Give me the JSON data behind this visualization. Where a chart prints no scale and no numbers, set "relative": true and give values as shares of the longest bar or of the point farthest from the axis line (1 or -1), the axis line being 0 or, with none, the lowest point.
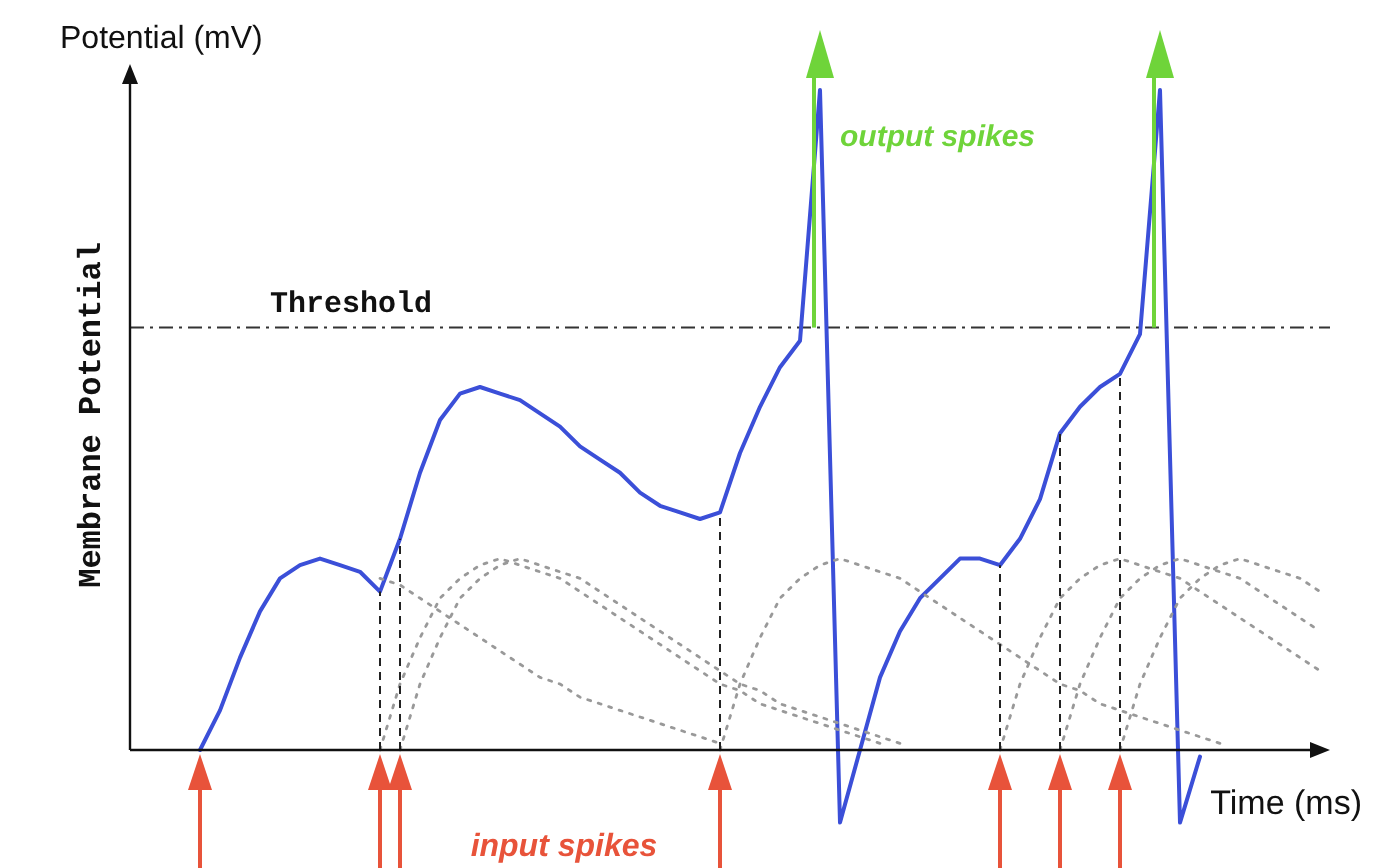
{
  "chart_data": {
    "type": "line",
    "relative": true,
    "marker": "none",
    "ylabel": "Membrane Potential",
    "xlabel": "Time (ms)",
    "annotations": [
      "Potential (mV)",
      "output spikes",
      "input spikes"
    ],
    "categories": [
      null,
      null,
      null,
      null,
      null,
      null,
      null,
      null,
      null,
      null,
      null,
      null,
      null,
      null,
      null,
      null,
      null,
      null,
      null,
      null,
      null,
      null,
      null,
      null,
      null,
      null,
      null,
      null,
      null,
      null,
      null,
      null,
      null,
      null,
      null,
      null,
      null,
      null,
      null,
      null,
      null,
      null,
      null,
      null,
      null,
      null,
      null,
      null,
      null,
      null,
      null,
      null,
      null,
      null,
      null,
      null,
      null,
      null,
      null,
      null
    ],
    "ref_lines": [
      {
        "axis": "y",
        "value": 0.64,
        "label": "Threshold",
        "line_style": "dashdot",
        "color": "#333333"
      }
    ],
    "series": [
      {
        "color": "#3b4fd8",
        "line_style": "solid",
        "values": [
          null,
          null,
          null,
          0,
          0.06,
          0.14,
          0.21,
          0.26,
          0.28,
          0.29,
          0.28,
          0.27,
          0.24,
          0.32,
          0.42,
          0.5,
          0.54,
          0.55,
          0.54,
          0.53,
          0.51,
          0.49,
          0.46,
          0.44,
          0.42,
          0.39,
          0.37,
          0.36,
          0.35,
          0.36,
          0.45,
          0.52,
          0.58,
          0.62,
          1,
          -0.11,
          0,
          0.11,
          0.18,
          0.23,
          0.26,
          0.29,
          0.29,
          0.28,
          0.32,
          0.38,
          0.48,
          0.52,
          0.55,
          0.57,
          0.63,
          1,
          -0.11,
          -0.01,
          null,
          null,
          null,
          null,
          null,
          null
        ]
      },
      {
        "color": "#999999",
        "line_style": "dotted",
        "values": [
          null,
          null,
          null,
          null,
          null,
          null,
          null,
          null,
          null,
          null,
          null,
          null,
          0.26,
          0.25,
          0.23,
          0.21,
          0.19,
          0.17,
          0.15,
          0.13,
          0.11,
          0.1,
          0.08,
          0.07,
          0.06,
          0.05,
          0.04,
          0.03,
          0.02,
          0.01,
          null,
          null,
          null,
          null,
          null,
          null,
          null,
          null,
          null,
          null,
          null,
          null,
          null,
          null,
          null,
          null,
          null,
          null,
          null,
          null,
          null,
          null,
          null,
          null,
          null,
          null,
          null,
          null,
          null,
          null
        ]
      },
      {
        "color": "#999999",
        "line_style": "dotted",
        "values": [
          null,
          null,
          null,
          null,
          null,
          null,
          null,
          null,
          null,
          null,
          null,
          null,
          0,
          0.1,
          0.17,
          0.23,
          0.26,
          0.28,
          0.29,
          0.28,
          0.27,
          0.26,
          0.24,
          0.22,
          0.2,
          0.18,
          0.16,
          0.14,
          0.12,
          0.1,
          0.09,
          0.07,
          0.06,
          0.05,
          0.04,
          0.03,
          0.02,
          0.01,
          null,
          null,
          null,
          null,
          null,
          null,
          null,
          null,
          null,
          null,
          null,
          null,
          null,
          null,
          null,
          null,
          null,
          null,
          null,
          null,
          null,
          null
        ]
      },
      {
        "color": "#999999",
        "line_style": "dotted",
        "values": [
          null,
          null,
          null,
          null,
          null,
          null,
          null,
          null,
          null,
          null,
          null,
          null,
          null,
          0,
          0.1,
          0.17,
          0.23,
          0.26,
          0.28,
          0.29,
          0.28,
          0.27,
          0.26,
          0.24,
          0.22,
          0.2,
          0.18,
          0.16,
          0.14,
          0.12,
          0.1,
          0.09,
          0.07,
          0.06,
          0.05,
          0.04,
          0.03,
          0.02,
          0.01,
          null,
          null,
          null,
          null,
          null,
          null,
          null,
          null,
          null,
          null,
          null,
          null,
          null,
          null,
          null,
          null,
          null,
          null,
          null,
          null,
          null
        ]
      },
      {
        "color": "#999999",
        "line_style": "dotted",
        "values": [
          null,
          null,
          null,
          null,
          null,
          null,
          null,
          null,
          null,
          null,
          null,
          null,
          null,
          null,
          null,
          null,
          null,
          null,
          null,
          null,
          null,
          null,
          null,
          null,
          null,
          null,
          null,
          null,
          null,
          0,
          0.1,
          0.17,
          0.23,
          0.26,
          0.28,
          0.29,
          0.28,
          0.27,
          0.26,
          0.24,
          0.22,
          0.2,
          0.18,
          0.16,
          0.14,
          0.12,
          0.1,
          0.09,
          0.07,
          0.06,
          0.05,
          0.04,
          0.03,
          0.02,
          0.01,
          null,
          null,
          null,
          null,
          null
        ]
      },
      {
        "color": "#999999",
        "line_style": "dotted",
        "values": [
          null,
          null,
          null,
          null,
          null,
          null,
          null,
          null,
          null,
          null,
          null,
          null,
          null,
          null,
          null,
          null,
          null,
          null,
          null,
          null,
          null,
          null,
          null,
          null,
          null,
          null,
          null,
          null,
          null,
          null,
          null,
          null,
          null,
          null,
          null,
          null,
          null,
          null,
          null,
          null,
          null,
          null,
          null,
          0,
          0.1,
          0.17,
          0.23,
          0.26,
          0.28,
          0.29,
          0.28,
          0.27,
          0.26,
          0.24,
          0.22,
          0.2,
          0.18,
          0.16,
          0.14,
          0.12
        ]
      },
      {
        "color": "#999999",
        "line_style": "dotted",
        "values": [
          null,
          null,
          null,
          null,
          null,
          null,
          null,
          null,
          null,
          null,
          null,
          null,
          null,
          null,
          null,
          null,
          null,
          null,
          null,
          null,
          null,
          null,
          null,
          null,
          null,
          null,
          null,
          null,
          null,
          null,
          null,
          null,
          null,
          null,
          null,
          null,
          null,
          null,
          null,
          null,
          null,
          null,
          null,
          null,
          null,
          null,
          0,
          0.1,
          0.17,
          0.23,
          0.26,
          0.28,
          0.29,
          0.28,
          0.27,
          0.26,
          0.24,
          0.22,
          0.2,
          0.18
        ]
      },
      {
        "color": "#999999",
        "line_style": "dotted",
        "values": [
          null,
          null,
          null,
          null,
          null,
          null,
          null,
          null,
          null,
          null,
          null,
          null,
          null,
          null,
          null,
          null,
          null,
          null,
          null,
          null,
          null,
          null,
          null,
          null,
          null,
          null,
          null,
          null,
          null,
          null,
          null,
          null,
          null,
          null,
          null,
          null,
          null,
          null,
          null,
          null,
          null,
          null,
          null,
          null,
          null,
          null,
          null,
          null,
          null,
          0,
          0.1,
          0.17,
          0.23,
          0.26,
          0.28,
          0.29,
          0.28,
          0.27,
          0.26,
          0.24
        ]
      }
    ]
  }
}
